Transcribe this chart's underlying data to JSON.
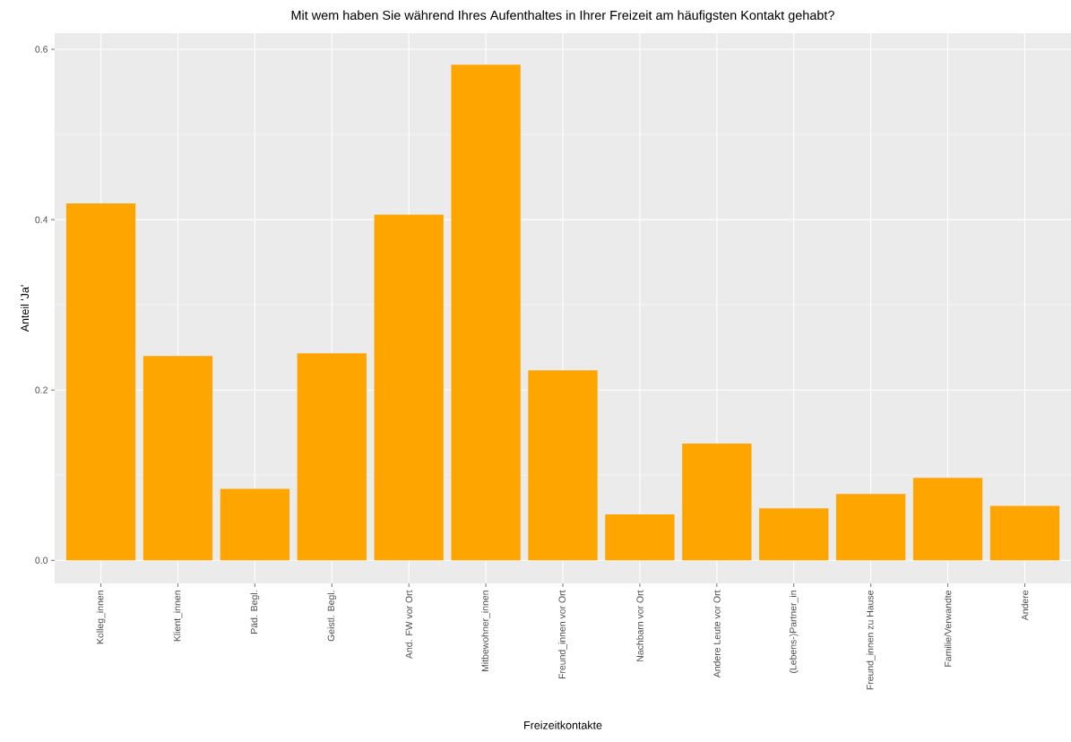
{
  "chart_data": {
    "type": "bar",
    "title": "Mit wem haben Sie während Ihres Aufenthaltes in Ihrer Freizeit am häufigsten Kontakt gehabt?",
    "xlabel": "Freizeitkontakte",
    "ylabel": "Anteil 'Ja'",
    "categories": [
      "Kolleg_innen",
      "Klient_innen",
      "Päd. Begl.",
      "Geistl. Begl.",
      "And. FW vor Ort",
      "Mitbewohner_innen",
      "Freund_innen vor Ort",
      "Nachbarn vor Ort",
      "Andere Leute vor Ort",
      "(Lebens-)Partner_in",
      "Freund_innen zu Hause",
      "Familie/Verwandte",
      "Andere"
    ],
    "values": [
      0.419,
      0.24,
      0.084,
      0.243,
      0.406,
      0.582,
      0.223,
      0.054,
      0.137,
      0.061,
      0.078,
      0.097,
      0.064
    ],
    "color": "#ffa500",
    "ylim": [
      -0.027,
      0.619
    ],
    "yticks": [
      {
        "value": 0,
        "label": "0.0"
      },
      {
        "value": 0.2,
        "label": "0.2"
      },
      {
        "value": 0.4,
        "label": "0.4"
      },
      {
        "value": 0.6,
        "label": "0.6"
      }
    ],
    "grid": true
  }
}
